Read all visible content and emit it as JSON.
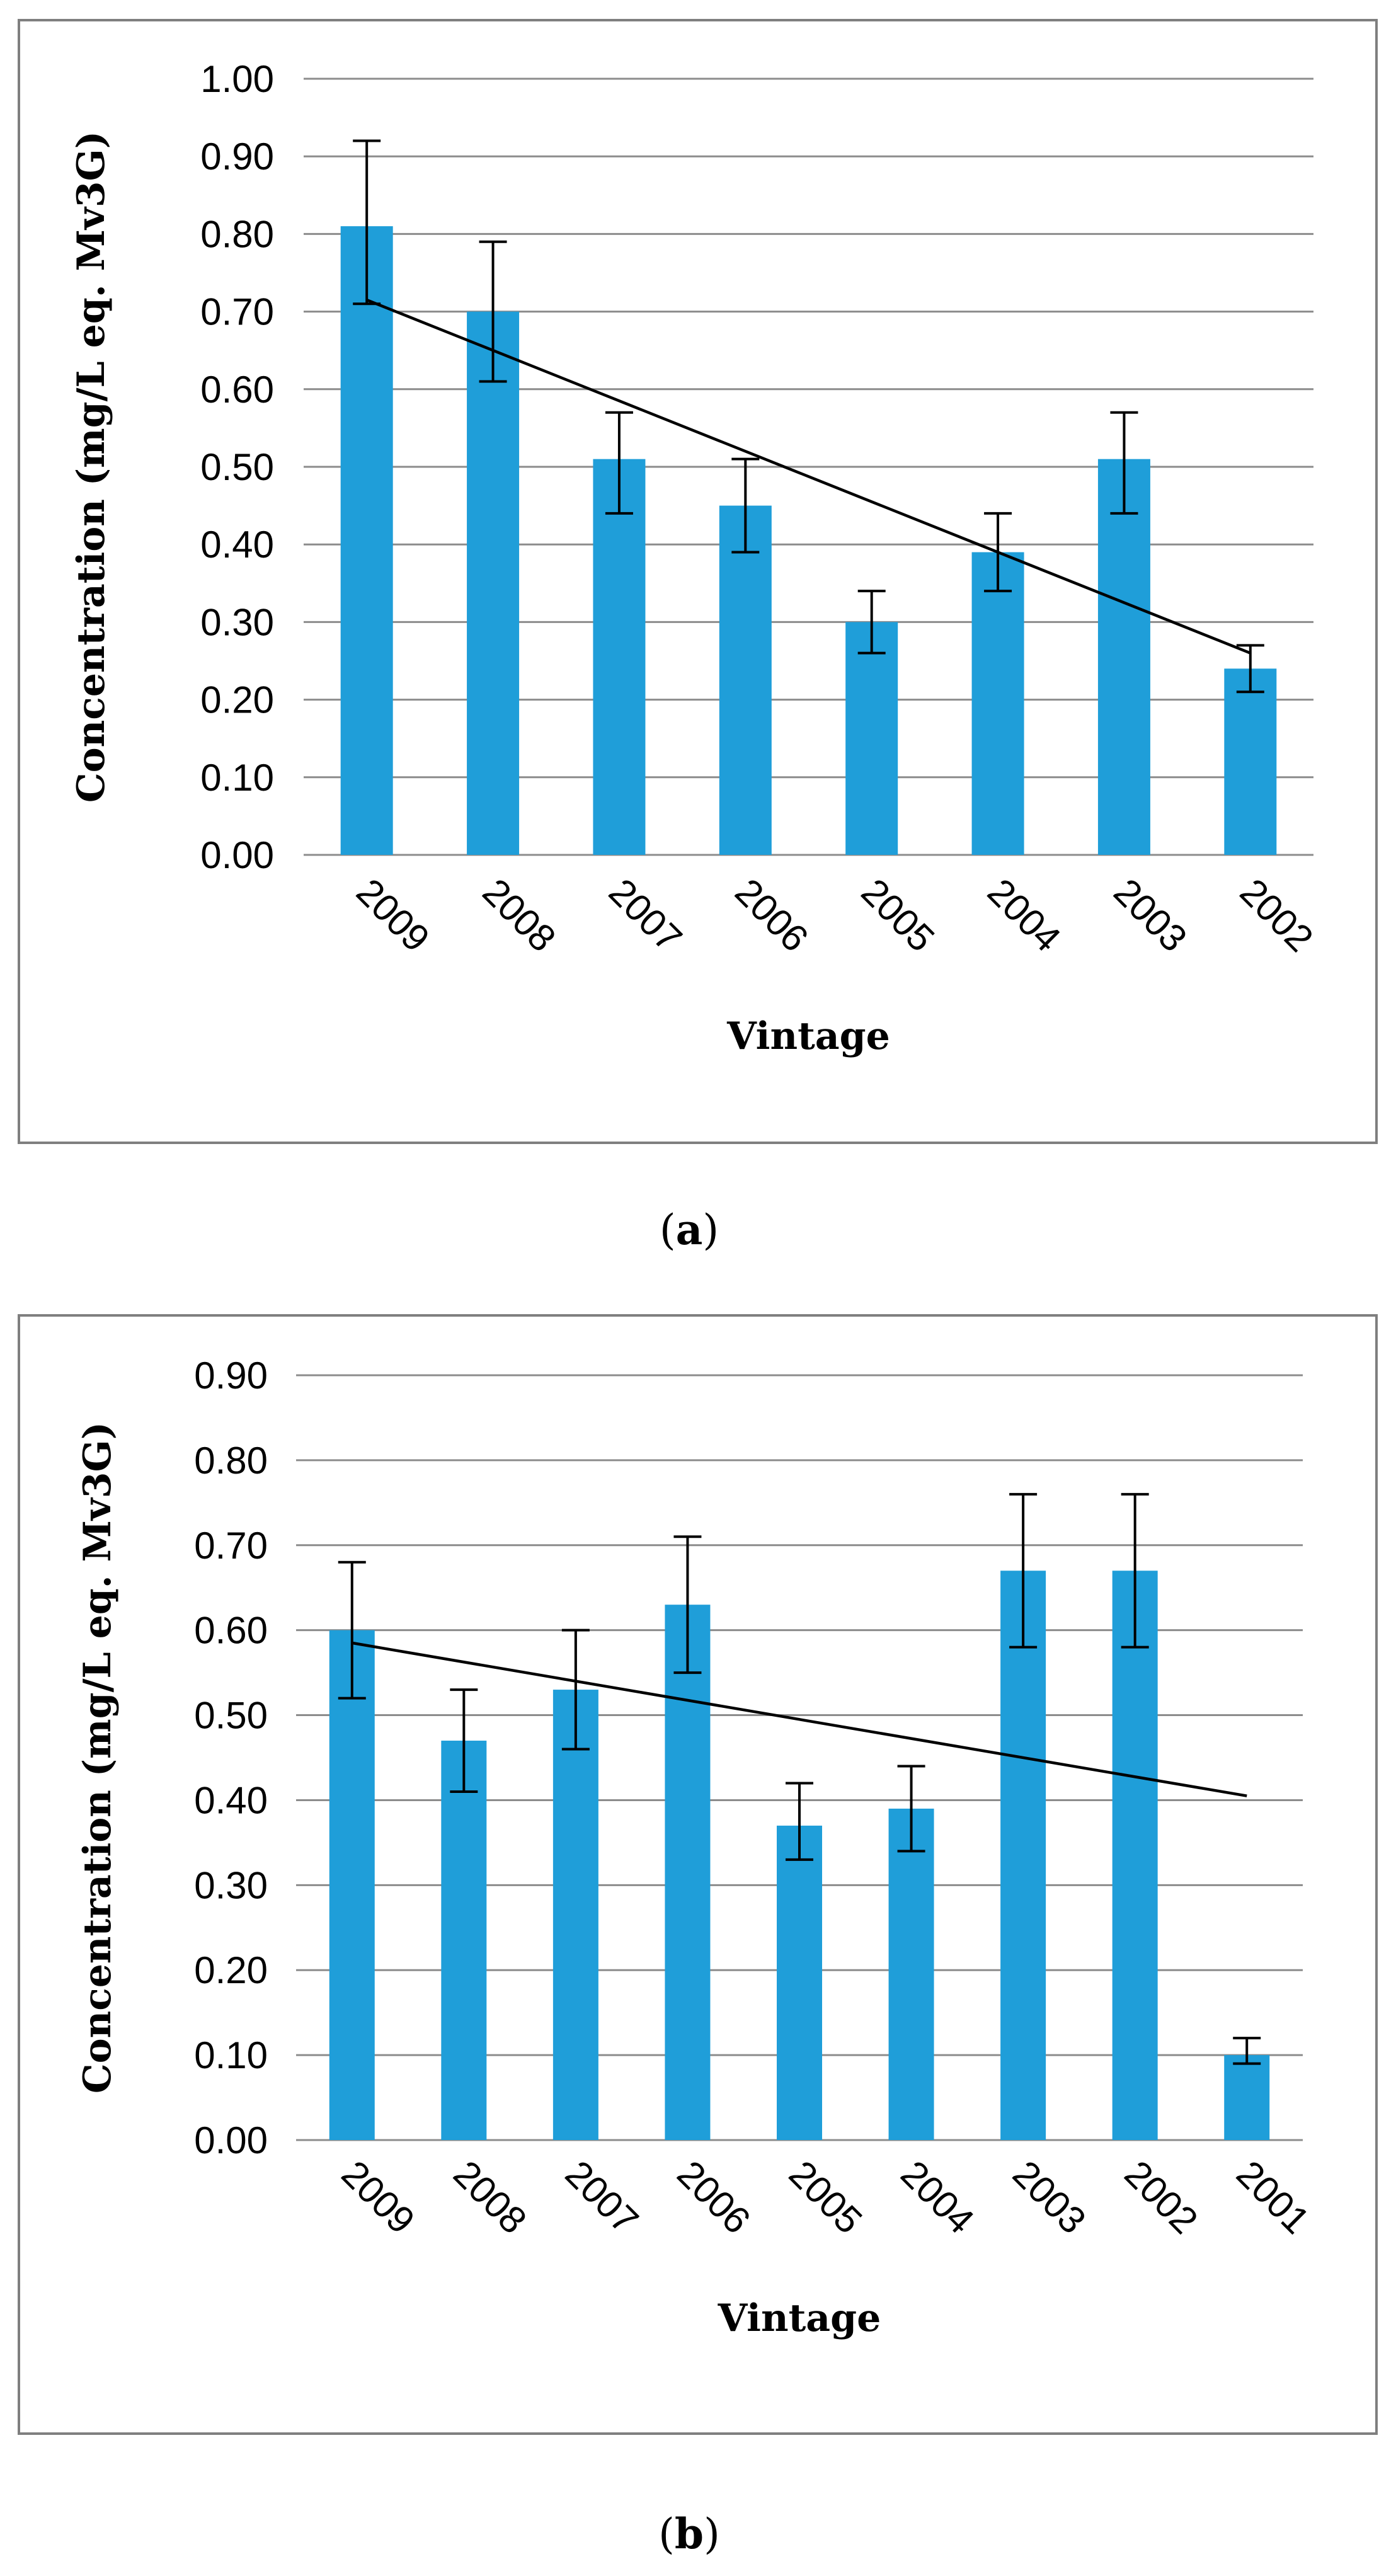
{
  "chart_data": [
    {
      "type": "bar",
      "panel_label": "a",
      "categories": [
        "2009",
        "2008",
        "2007",
        "2006",
        "2005",
        "2004",
        "2003",
        "2002"
      ],
      "values": [
        0.81,
        0.7,
        0.51,
        0.45,
        0.3,
        0.39,
        0.51,
        0.24
      ],
      "error_low": [
        0.71,
        0.61,
        0.44,
        0.39,
        0.26,
        0.34,
        0.44,
        0.21
      ],
      "error_high": [
        0.92,
        0.79,
        0.57,
        0.51,
        0.34,
        0.44,
        0.57,
        0.27
      ],
      "trendline": {
        "start": 0.715,
        "end": 0.26
      },
      "xlabel": "Vintage",
      "ylabel": "Concentration (mg/L eq. Mv3G)",
      "ylim": [
        0,
        1.0
      ],
      "ytick_step": 0.1,
      "yticks": [
        "0.00",
        "0.10",
        "0.20",
        "0.30",
        "0.40",
        "0.50",
        "0.60",
        "0.70",
        "0.80",
        "0.90",
        "1.00"
      ],
      "grid": true,
      "bar_color": "#1f9ed9"
    },
    {
      "type": "bar",
      "panel_label": "b",
      "categories": [
        "2009",
        "2008",
        "2007",
        "2006",
        "2005",
        "2004",
        "2003",
        "2002",
        "2001"
      ],
      "values": [
        0.6,
        0.47,
        0.53,
        0.63,
        0.37,
        0.39,
        0.67,
        0.67,
        0.1
      ],
      "error_low": [
        0.52,
        0.41,
        0.46,
        0.55,
        0.33,
        0.34,
        0.58,
        0.58,
        0.09
      ],
      "error_high": [
        0.68,
        0.53,
        0.6,
        0.71,
        0.42,
        0.44,
        0.76,
        0.76,
        0.12
      ],
      "trendline": {
        "start": 0.585,
        "end": 0.405
      },
      "xlabel": "Vintage",
      "ylabel": "Concentration (mg/L eq. Mv3G)",
      "ylim": [
        0,
        0.9
      ],
      "ytick_step": 0.1,
      "yticks": [
        "0.00",
        "0.10",
        "0.20",
        "0.30",
        "0.40",
        "0.50",
        "0.60",
        "0.70",
        "0.80",
        "0.90"
      ],
      "grid": true,
      "bar_color": "#1f9ed9"
    }
  ]
}
